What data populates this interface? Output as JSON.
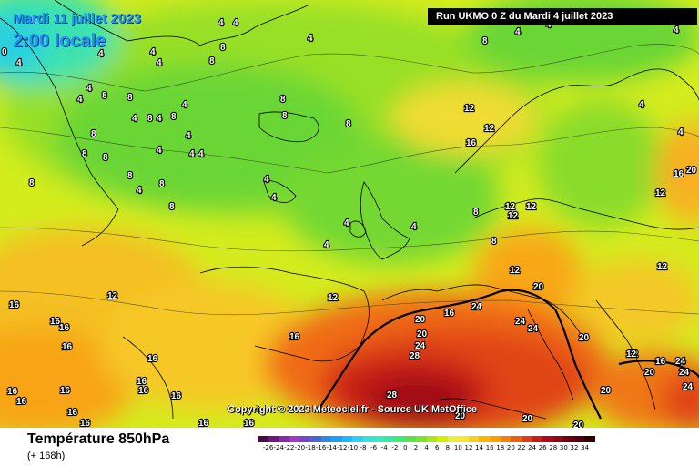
{
  "map": {
    "date_label": "Mardi 11 juillet 2023",
    "time_label": "2:00 locale",
    "run_label": "Run UKMO 0 Z du Mardi 4 juillet 2023",
    "copyright": "Copyright © 2023 Meteociel.fr - Source UK MetOffice",
    "parameter_label": "Température 850hPa",
    "lead_time_label": "(+ 168h)",
    "isotherm_labels": [
      {
        "t": "4"
      },
      {
        "t": "4"
      },
      {
        "t": "4"
      },
      {
        "t": "8"
      },
      {
        "t": "8"
      },
      {
        "t": "4"
      },
      {
        "t": "4"
      },
      {
        "t": "0"
      },
      {
        "t": "4"
      },
      {
        "t": "4"
      },
      {
        "t": "8"
      },
      {
        "t": "8"
      },
      {
        "t": "4"
      },
      {
        "t": "4"
      },
      {
        "t": "4"
      },
      {
        "t": "4"
      },
      {
        "t": "8"
      },
      {
        "t": "8"
      },
      {
        "t": "4"
      },
      {
        "t": "8"
      },
      {
        "t": "8"
      },
      {
        "t": "8"
      },
      {
        "t": "4"
      },
      {
        "t": "4"
      },
      {
        "t": "4"
      },
      {
        "t": "4"
      },
      {
        "t": "8"
      },
      {
        "t": "4"
      },
      {
        "t": "4"
      },
      {
        "t": "8"
      },
      {
        "t": "8"
      },
      {
        "t": "8"
      },
      {
        "t": "4"
      },
      {
        "t": "4"
      },
      {
        "t": "4"
      },
      {
        "t": "4"
      },
      {
        "t": "8"
      },
      {
        "t": "8"
      },
      {
        "t": "12"
      },
      {
        "t": "12"
      },
      {
        "t": "16"
      },
      {
        "t": "12"
      },
      {
        "t": "8"
      },
      {
        "t": "8"
      },
      {
        "t": "8"
      },
      {
        "t": "12"
      },
      {
        "t": "12"
      },
      {
        "t": "12"
      },
      {
        "t": "8"
      },
      {
        "t": "4"
      },
      {
        "t": "4"
      },
      {
        "t": "12"
      },
      {
        "t": "16"
      },
      {
        "t": "20"
      },
      {
        "t": "12"
      },
      {
        "t": "12"
      },
      {
        "t": "12"
      },
      {
        "t": "16"
      },
      {
        "t": "16"
      },
      {
        "t": "16"
      },
      {
        "t": "16"
      },
      {
        "t": "16"
      },
      {
        "t": "16"
      },
      {
        "t": "16"
      },
      {
        "t": "16"
      },
      {
        "t": "16"
      },
      {
        "t": "16"
      },
      {
        "t": "16"
      },
      {
        "t": "16"
      },
      {
        "t": "16"
      },
      {
        "t": "16"
      },
      {
        "t": "16"
      },
      {
        "t": "16"
      },
      {
        "t": "16"
      },
      {
        "t": "20"
      },
      {
        "t": "20"
      },
      {
        "t": "24"
      },
      {
        "t": "24"
      },
      {
        "t": "28"
      },
      {
        "t": "20"
      },
      {
        "t": "24"
      },
      {
        "t": "24"
      },
      {
        "t": "24"
      },
      {
        "t": "28"
      },
      {
        "t": "20"
      },
      {
        "t": "20"
      },
      {
        "t": "20"
      },
      {
        "t": "12"
      },
      {
        "t": "12"
      },
      {
        "t": "16"
      },
      {
        "t": "20"
      },
      {
        "t": "24"
      },
      {
        "t": "24"
      },
      {
        "t": "20"
      },
      {
        "t": "20"
      },
      {
        "t": "4"
      },
      {
        "t": "4"
      },
      {
        "t": "4"
      }
    ],
    "scale": {
      "labels": [
        "-26",
        "-24",
        "-22",
        "-20",
        "-18",
        "-16",
        "-14",
        "-12",
        "-10",
        "-8",
        "-6",
        "-4",
        "-2",
        "0",
        "2",
        "4",
        "6",
        "8",
        "10",
        "12",
        "14",
        "16",
        "18",
        "20",
        "22",
        "24",
        "26",
        "28",
        "30",
        "32",
        "34"
      ],
      "colors": [
        "#4a0a48",
        "#6a1a78",
        "#8a2aa0",
        "#a03cc0",
        "#7048c8",
        "#4868d0",
        "#3088e0",
        "#20a0f0",
        "#20b8f8",
        "#30d0f0",
        "#38e0d8",
        "#38e8c0",
        "#38e8a0",
        "#40e878",
        "#58e050",
        "#80e030",
        "#a8e820",
        "#d0f000",
        "#e8f040",
        "#f8e830",
        "#f8d020",
        "#f8b800",
        "#f8a000",
        "#f08010",
        "#e86010",
        "#d84018",
        "#c82018",
        "#b00818",
        "#900818",
        "#700010",
        "#500008",
        "#300000"
      ]
    }
  }
}
